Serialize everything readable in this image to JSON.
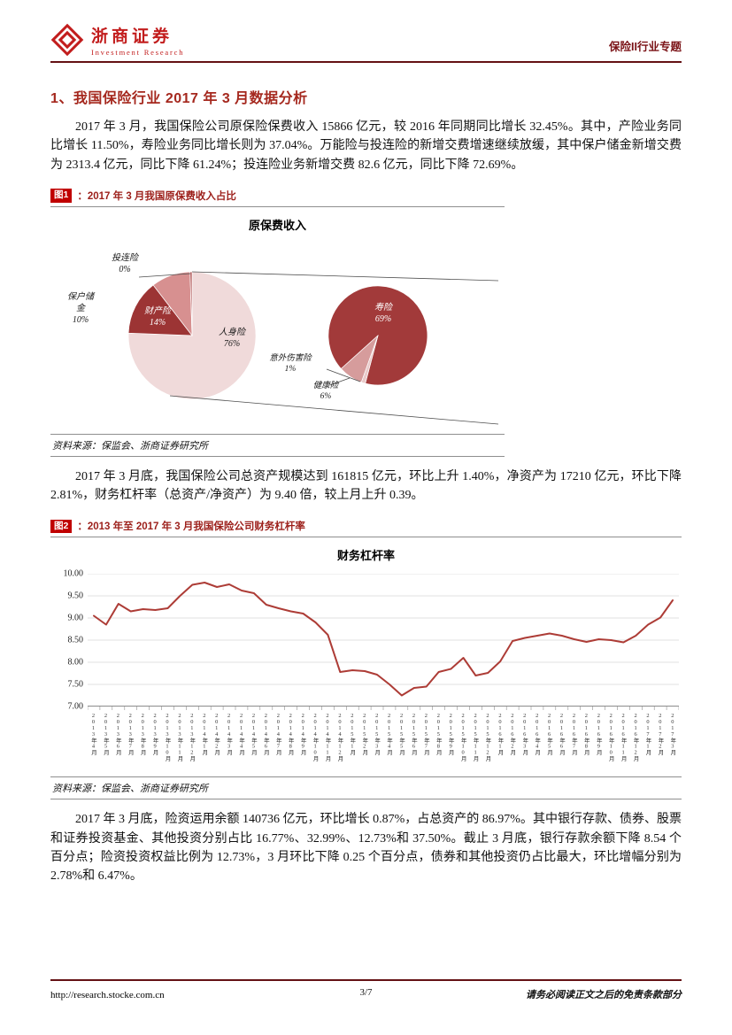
{
  "header": {
    "brand_cn": "浙商证券",
    "brand_en": "Investment Research",
    "topic": "保险II行业专题"
  },
  "section": {
    "title": "1、我国保险行业 2017 年 3 月数据分析"
  },
  "paragraphs": {
    "p1": "2017 年 3 月，我国保险公司原保险保费收入 15866 亿元，较 2016 年同期同比增长 32.45%。其中，产险业务同比增长 11.50%，寿险业务同比增长则为 37.04%。万能险与投连险的新增交费增速继续放缓，其中保户储金新增交费为 2313.4 亿元，同比下降 61.24%；投连险业务新增交费 82.6 亿元，同比下降 72.69%。",
    "p2": "2017 年 3 月底，我国保险公司总资产规模达到 161815 亿元，环比上升 1.40%，净资产为 17210 亿元，环比下降 2.81%，财务杠杆率（总资产/净资产）为 9.40 倍，较上月上升 0.39。",
    "p3": "2017 年 3 月底，险资运用余额 140736 亿元，环比增长 0.87%，占总资产的 86.97%。其中银行存款、债券、股票和证券投资基金、其他投资分别占比 16.77%、32.99%、12.73%和 37.50%。截止 3 月底，银行存款余额下降 8.54 个百分点；险资投资权益比例为 12.73%，3 月环比下降 0.25 个百分点，债券和其他投资仍占比最大，环比增幅分别为 2.78%和 6.47%。"
  },
  "figure1": {
    "tag": "图1",
    "caption": "：2017 年 3 月我国原保费收入占比",
    "source": "资料来源：保监会、浙商证券研究所"
  },
  "figure2": {
    "tag": "图2",
    "caption": "：2013 年至 2017 年 3 月我国保险公司财务杠杆率",
    "source": "资料来源：保监会、浙商证券研究所"
  },
  "footer": {
    "url": "http://research.stocke.com.cn",
    "page_num": "3/7",
    "disclaimer": "请务必阅读正文之后的免责条款部分"
  },
  "colors": {
    "accent_red": "#c00000",
    "caption_red": "#9c1f1a",
    "rule_maroon": "#641114"
  },
  "chart_data": [
    {
      "type": "pie",
      "title": "原保费收入",
      "slices": [
        {
          "label": "人身险",
          "pct": "76%",
          "value": 76,
          "color": "#f0dada"
        },
        {
          "label": "财产险",
          "pct": "14%",
          "value": 14,
          "color": "#9c3434"
        },
        {
          "label": "保户储金",
          "pct": "10%",
          "value": 10,
          "color": "#d79090"
        },
        {
          "label": "投连险",
          "pct": "0%",
          "value": 0,
          "color": "#b25a5a"
        }
      ],
      "sub_slices": [
        {
          "label": "寿险",
          "pct": "69%",
          "value": 69,
          "color": "#a23a3a"
        },
        {
          "label": "意外伤害险",
          "pct": "1%",
          "value": 1,
          "color": "#e9caca"
        },
        {
          "label": "健康险",
          "pct": "6%",
          "value": 6,
          "color": "#d69c9c"
        }
      ]
    },
    {
      "type": "line",
      "title": "财务杠杆率",
      "ylim": [
        7.0,
        10.0
      ],
      "yticks": [
        "7.00",
        "7.50",
        "8.00",
        "8.50",
        "9.00",
        "9.50",
        "10.00"
      ],
      "line_color": "#ad3c36",
      "x": [
        "2013年4月",
        "2013年5月",
        "2013年6月",
        "2013年7月",
        "2013年8月",
        "2013年9月",
        "2013年10月",
        "2013年11月",
        "2013年12月",
        "2014年1月",
        "2014年2月",
        "2014年3月",
        "2014年4月",
        "2014年5月",
        "2014年6月",
        "2014年7月",
        "2014年8月",
        "2014年9月",
        "2014年10月",
        "2014年11月",
        "2014年12月",
        "2015年1月",
        "2015年2月",
        "2015年3月",
        "2015年4月",
        "2015年5月",
        "2015年6月",
        "2015年7月",
        "2015年8月",
        "2015年9月",
        "2015年10月",
        "2015年11月",
        "2015年12月",
        "2016年1月",
        "2016年2月",
        "2016年3月",
        "2016年4月",
        "2016年5月",
        "2016年6月",
        "2016年7月",
        "2016年8月",
        "2016年9月",
        "2016年10月",
        "2016年11月",
        "2016年12月",
        "2017年1月",
        "2017年2月",
        "2017年3月"
      ],
      "values": [
        9.05,
        8.85,
        9.32,
        9.15,
        9.2,
        9.18,
        9.22,
        9.5,
        9.75,
        9.8,
        9.7,
        9.76,
        9.62,
        9.56,
        9.3,
        9.22,
        9.15,
        9.1,
        8.9,
        8.62,
        7.78,
        7.82,
        7.8,
        7.72,
        7.5,
        7.25,
        7.42,
        7.45,
        7.78,
        7.85,
        8.1,
        7.7,
        7.76,
        8.02,
        8.48,
        8.55,
        8.6,
        8.65,
        8.6,
        8.52,
        8.46,
        8.52,
        8.5,
        8.45,
        8.6,
        8.85,
        9.01,
        9.4
      ]
    }
  ]
}
